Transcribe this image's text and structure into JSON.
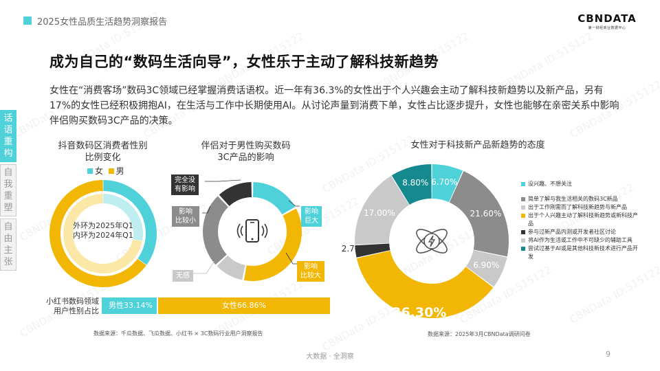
{
  "header": {
    "title": "2025女性品质生活趋势洞察报告"
  },
  "logo": {
    "name": "CBNDATA",
    "subtitle": "第一财经商业数据中心"
  },
  "main_title": "成为自己的“数码生活向导”，女性乐于主动了解科技新趋势",
  "description": "女性在“消费客场”数码3C领域已经掌握消费话语权。近一年有36.3%的女性出于个人兴趣会主动了解科技新趋势以及新产品，另有17%的女性已经积极拥抱AI，在生活与工作中长期使用AI。从讨论声量到消费下单，女性占比逐步提升，女性也能够在亲密关系中影响伴侣购买数码3C产品的决策。",
  "side_tabs": [
    "话语重构",
    "自我重塑",
    "自由主张"
  ],
  "chart1": {
    "title_line1": "抖音数码区消费者性别",
    "title_line2": "比例变化",
    "legend_female": "女",
    "legend_male": "男",
    "center_line1": "外环为2025年Q1",
    "center_line2": "内环为2024年Q1"
  },
  "chart2": {
    "title_line1": "伴侣对于男性购买数码",
    "title_line2": "3C产品的影响",
    "callouts": {
      "huge_line1": "完全没",
      "huge_line2": "有影响",
      "small_line1": "影响",
      "small_line2": "比较小",
      "none": "无感",
      "big_line1": "影响",
      "big_line2": "巨大",
      "large_line1": "影响",
      "large_line2": "比较大"
    }
  },
  "bar": {
    "label_line1": "小红书数码领域",
    "label_line2": "用户性别占比",
    "male": "男性33.14%",
    "female": "女性66.86%"
  },
  "source_left": "数据来源：千瓜数据、飞瓜数据、小红书 × 3C数码行业用户洞察报告",
  "chart3": {
    "title": "女性对于科技新产品新趋势的态度",
    "legend": [
      "没兴趣、不想关注",
      "简单了解与我生活相关的数码3C新品",
      "出于工作刚需而了解科技新趋势与新产品",
      "出于个人兴趣主动了解科技新趋势或新科技产品",
      "参与过新产品内测或开发者社区讨论",
      "将AI作为生活或工作中不可缺少的辅助工具",
      "尝试过基于AI或是其他科技新技术进行产品开发"
    ],
    "labels": [
      "6.70%",
      "21.60%",
      "6.90%",
      "36.30%",
      "2.70%",
      "17.00%",
      "8.80%"
    ]
  },
  "source_right": "数据来源：2025年3月CBNData调研问卷",
  "footer": "大数据 · 全洞察",
  "page_number": "9",
  "watermark": "CBNData ID:515122",
  "colors": {
    "teal": "#4fd1d9",
    "yellow": "#f2b705",
    "gray": "#8c8c8c",
    "lightgray": "#c9c9c9",
    "darkteal": "#148a8f",
    "dark": "#333333"
  },
  "chart_data": [
    {
      "type": "pie",
      "title": "抖音数码区消费者性别比例变化",
      "series": [
        {
          "name": "2025年Q1",
          "values": [
            {
              "label": "女",
              "value": 0.35
            },
            {
              "label": "男",
              "value": 0.65
            }
          ]
        },
        {
          "name": "2024年Q1",
          "values": [
            {
              "label": "女",
              "value": 0.28
            },
            {
              "label": "男",
              "value": 0.72
            }
          ]
        }
      ]
    },
    {
      "type": "pie",
      "title": "伴侣对于男性购买数码3C产品的影响",
      "values": [
        {
          "label": "影响巨大",
          "value": 0.17
        },
        {
          "label": "影响比较大",
          "value": 0.36
        },
        {
          "label": "无感",
          "value": 0.1
        },
        {
          "label": "影响比较小",
          "value": 0.25
        },
        {
          "label": "完全没有影响",
          "value": 0.12
        }
      ]
    },
    {
      "type": "bar",
      "title": "小红书数码领域用户性别占比",
      "categories": [
        "男性",
        "女性"
      ],
      "values": [
        33.14,
        66.86
      ]
    },
    {
      "type": "pie",
      "title": "女性对于科技新产品新趋势的态度",
      "values": [
        {
          "label": "没兴趣、不想关注",
          "value": 6.7
        },
        {
          "label": "简单了解与我生活相关的数码3C新品",
          "value": 21.6
        },
        {
          "label": "出于工作刚需而了解科技新趋势与新产品",
          "value": 6.9
        },
        {
          "label": "出于个人兴趣主动了解科技新趋势或新科技产品",
          "value": 36.3
        },
        {
          "label": "参与过新产品内测或开发者社区讨论",
          "value": 2.7
        },
        {
          "label": "将AI作为生活或工作中不可缺少的辅助工具",
          "value": 17.0
        },
        {
          "label": "尝试过基于AI或是其他科技新技术进行产品开发",
          "value": 8.8
        }
      ]
    }
  ]
}
